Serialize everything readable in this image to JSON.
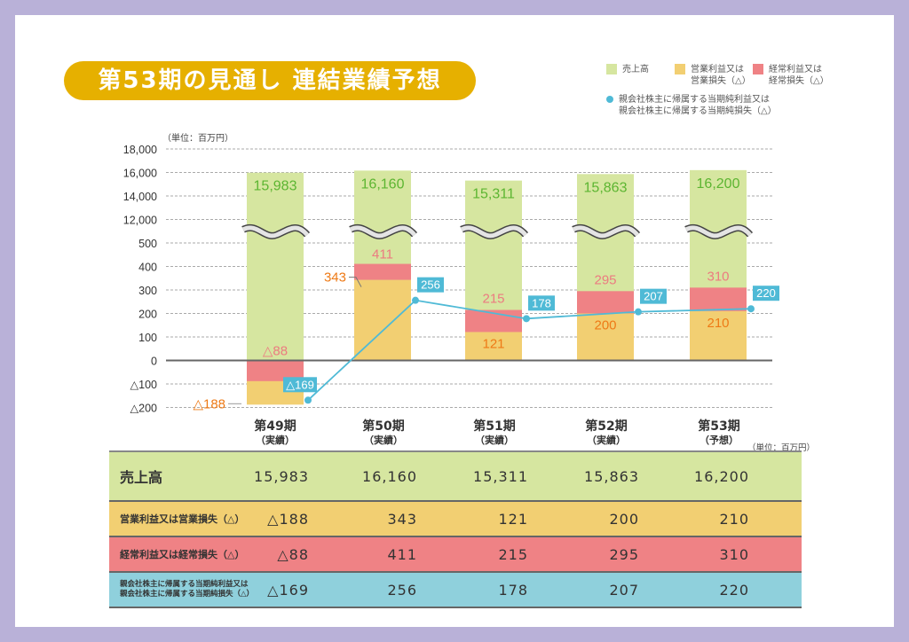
{
  "title": "第53期の見通し 連結業績予想",
  "legend": [
    {
      "key": "sales",
      "label_line1": "売上高",
      "label_line2": "",
      "color": "#d6e6a0",
      "shape": "square"
    },
    {
      "key": "operating",
      "label_line1": "営業利益又は",
      "label_line2": "営業損失（△）",
      "color": "#f2cf72",
      "shape": "square"
    },
    {
      "key": "ordinary",
      "label_line1": "経常利益又は",
      "label_line2": "経常損失（△）",
      "color": "#ef8285",
      "shape": "square"
    },
    {
      "key": "net",
      "label_line1": "親会社株主に帰属する当期純利益又は",
      "label_line2": "親会社株主に帰属する当期純損失（△）",
      "color": "#4fbad6",
      "shape": "dot"
    }
  ],
  "unit_label": "（単位：百万円）",
  "table_unit_label": "（単位：百万円）",
  "periods": [
    {
      "name": "第49期",
      "status": "（実績）"
    },
    {
      "name": "第50期",
      "status": "（実績）"
    },
    {
      "name": "第51期",
      "status": "（実績）"
    },
    {
      "name": "第52期",
      "status": "（実績）"
    },
    {
      "name": "第53期",
      "status": "（予想）"
    }
  ],
  "chart_data": {
    "type": "bar",
    "title": "第53期の見通し 連結業績予想",
    "xlabel": "",
    "ylabel": "（単位：百万円）",
    "categories": [
      "第49期（実績）",
      "第50期（実績）",
      "第51期（実績）",
      "第52期（実績）",
      "第53期（予想）"
    ],
    "y_ticks_upper": [
      "18,000",
      "16,000",
      "14,000",
      "12,000"
    ],
    "y_ticks_lower": [
      "500",
      "400",
      "300",
      "200",
      "100",
      "0",
      "△100",
      "△200"
    ],
    "y_axis_break": "between 12,000 and 500",
    "ylim_lower": [
      -200,
      500
    ],
    "ylim_upper": [
      12000,
      18000
    ],
    "grid": true,
    "legend_position": "top-right",
    "series": [
      {
        "name": "売上高",
        "type": "bar",
        "values": [
          15983,
          16160,
          15311,
          15863,
          16200
        ],
        "labels": [
          "15,983",
          "16,160",
          "15,311",
          "15,863",
          "16,200"
        ],
        "color": "#d6e6a0",
        "label_color": "#5cb531"
      },
      {
        "name": "営業利益又は営業損失（△）",
        "type": "bar",
        "values": [
          -188,
          343,
          121,
          200,
          210
        ],
        "labels": [
          "△188",
          "343",
          "121",
          "200",
          "210"
        ],
        "color": "#f2cf72",
        "label_color": "#ee7a16"
      },
      {
        "name": "経常利益又は経常損失（△）",
        "type": "bar",
        "values": [
          -88,
          411,
          215,
          295,
          310
        ],
        "labels": [
          "△88",
          "411",
          "215",
          "295",
          "310"
        ],
        "color": "#ef8285",
        "label_color": "#ec7b80"
      },
      {
        "name": "親会社株主に帰属する当期純利益又は親会社株主に帰属する当期純損失（△）",
        "type": "line",
        "values": [
          -169,
          256,
          178,
          207,
          220
        ],
        "labels": [
          "△169",
          "256",
          "178",
          "207",
          "220"
        ],
        "color": "#4fbad6",
        "label_color": "#ffffff"
      }
    ]
  },
  "table": {
    "rows": [
      {
        "key": "sales",
        "label_line1": "売上高",
        "label_line2": "",
        "values": [
          "15,983",
          "16,160",
          "15,311",
          "15,863",
          "16,200"
        ],
        "color": "#d6e6a0"
      },
      {
        "key": "operating",
        "label_line1": "営業利益又は営業損失（△）",
        "label_line2": "",
        "values": [
          "△188",
          "343",
          "121",
          "200",
          "210"
        ],
        "color": "#f2cf72"
      },
      {
        "key": "ordinary",
        "label_line1": "経常利益又は経常損失（△）",
        "label_line2": "",
        "values": [
          "△88",
          "411",
          "215",
          "295",
          "310"
        ],
        "color": "#ef8285"
      },
      {
        "key": "net",
        "label_line1": "親会社株主に帰属する当期純利益又は",
        "label_line2": "親会社株主に帰属する当期純損失（△）",
        "values": [
          "△169",
          "256",
          "178",
          "207",
          "220"
        ],
        "color": "#8fd0dc"
      }
    ]
  }
}
